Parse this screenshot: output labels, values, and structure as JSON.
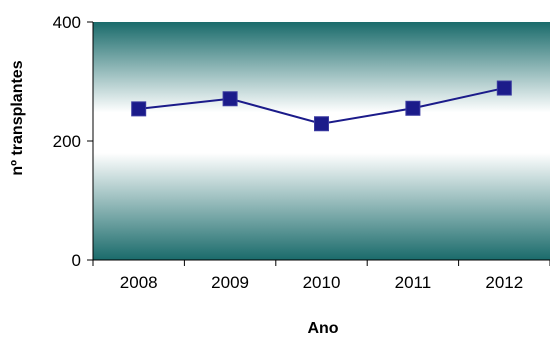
{
  "chart_data": {
    "type": "line",
    "title": "",
    "xlabel": "Ano",
    "ylabel": "nº transplantes",
    "categories": [
      "2008",
      "2009",
      "2010",
      "2011",
      "2012"
    ],
    "series": [
      {
        "values": [
          254,
          271,
          229,
          255,
          289
        ],
        "color": "#1b1b8a"
      }
    ],
    "ylim": [
      0,
      400
    ],
    "yticks": [
      0,
      200,
      400
    ],
    "grid": false,
    "legend": "none",
    "plot_gradient": {
      "edge": "#1a6b6b",
      "center": "#ffffff"
    }
  }
}
